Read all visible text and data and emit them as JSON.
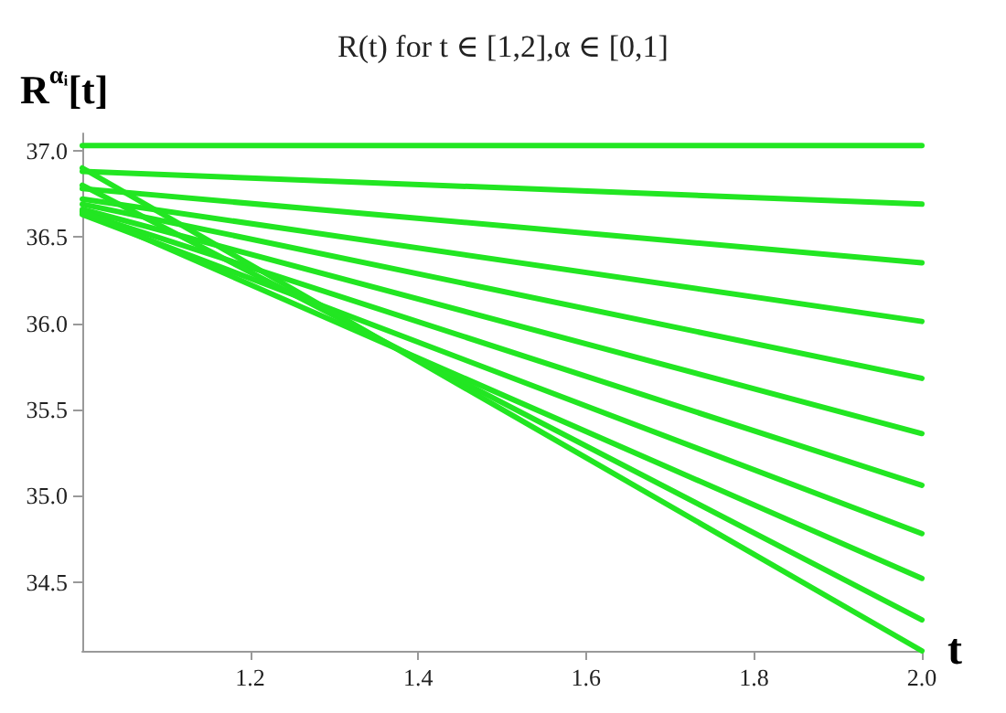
{
  "chart_data": {
    "type": "line",
    "title": "R(t) for t ∈ [1,2],α ∈ [0,1]",
    "xlabel": "t",
    "ylabel": "R$^{αᵢ}$[t]",
    "x": [
      1,
      2
    ],
    "xlim": [
      1,
      2
    ],
    "xticks": [
      1.2,
      1.4,
      1.6,
      1.8,
      {
        "value": 2,
        "label": "2.0"
      }
    ],
    "ylim": [
      34.1,
      37.1
    ],
    "yticks": [
      34.5,
      {
        "value": 35,
        "label": "35.0"
      },
      35.5,
      {
        "value": 36,
        "label": "36.0"
      },
      36.5,
      {
        "value": 37,
        "label": "37.0"
      }
    ],
    "grid": false,
    "marker": "none",
    "line_style": "solid",
    "series": [
      {
        "color": "#22e622",
        "values": [
          37.03,
          37.03
        ]
      },
      {
        "color": "#22e622",
        "values": [
          36.88,
          36.69
        ]
      },
      {
        "color": "#22e622",
        "values": [
          36.78,
          36.35
        ]
      },
      {
        "color": "#22e622",
        "values": [
          36.72,
          36.01
        ]
      },
      {
        "color": "#22e622",
        "values": [
          36.69,
          35.68
        ]
      },
      {
        "color": "#22e622",
        "values": [
          36.66,
          35.36
        ]
      },
      {
        "color": "#22e622",
        "values": [
          36.64,
          35.06
        ]
      },
      {
        "color": "#22e622",
        "values": [
          36.63,
          34.78
        ]
      },
      {
        "color": "#22e622",
        "values": [
          36.65,
          34.52
        ]
      },
      {
        "color": "#22e622",
        "values": [
          36.8,
          34.28
        ]
      },
      {
        "color": "#22e622",
        "values": [
          36.9,
          34.1
        ]
      }
    ]
  }
}
